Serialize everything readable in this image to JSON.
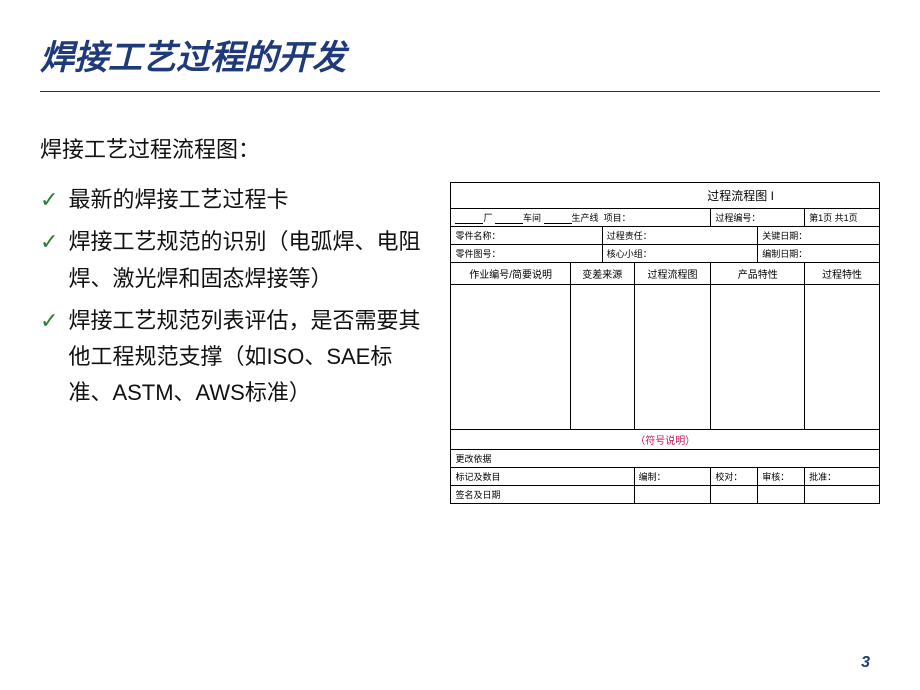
{
  "title": "焊接工艺过程的开发",
  "subtitle": "焊接工艺过程流程图：",
  "bullets": [
    "最新的焊接工艺过程卡",
    "焊接工艺规范的识别（电弧焊、电阻焊、激光焊和固态焊接等）",
    "焊接工艺规范列表评估，是否需要其他工程规范支撑（如ISO、SAE标准、ASTM、AWS标准）"
  ],
  "form": {
    "title": "过程流程图 I",
    "line2": {
      "factory": "厂",
      "workshop": "车间",
      "prodline": "生产线",
      "project": "项目：",
      "processno": "过程编号：",
      "pages": "第1页 共1页"
    },
    "row1": {
      "partname": "零件名称：",
      "procresp": "过程责任：",
      "keydate": "关键日期："
    },
    "row2": {
      "partno": "零件图号：",
      "coreteam": "核心小组：",
      "compdate": "编制日期："
    },
    "cols": [
      "作业编号/简要说明",
      "变差来源",
      "过程流程图",
      "产品特性",
      "过程特性"
    ],
    "symbol": "（符号说明）",
    "footer1": "更改依据",
    "footer2": {
      "label": "标记及数目",
      "compile": "编制：",
      "check": "校对：",
      "review": "审核：",
      "approve": "批准："
    },
    "footer3": "签名及日期"
  },
  "pagenum": "3",
  "colors": {
    "title": "#1f3a7a",
    "check": "#2e7d32",
    "symbol": "#c2185b"
  }
}
